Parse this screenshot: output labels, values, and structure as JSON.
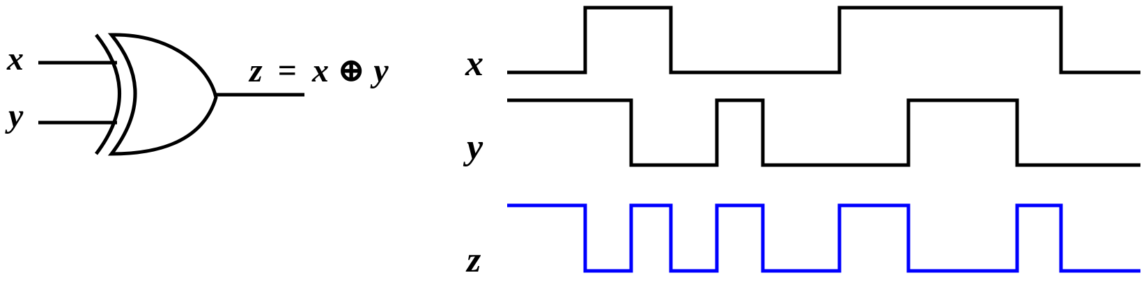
{
  "gate": {
    "type": "XOR",
    "input_labels": [
      "x",
      "y"
    ],
    "output_equation": {
      "lhs": "z",
      "equals": "=",
      "operand_a": "x",
      "operator": "⊕",
      "operand_b": "y"
    }
  },
  "timing": {
    "signals": [
      {
        "name": "x",
        "color": "#000000",
        "levels": [
          0,
          1,
          1,
          0,
          0,
          0,
          0,
          1,
          1,
          1,
          1,
          0,
          0
        ]
      },
      {
        "name": "y",
        "color": "#000000",
        "levels": [
          1,
          1,
          0,
          0,
          1,
          0,
          0,
          0,
          1,
          1,
          0,
          0,
          0
        ]
      },
      {
        "name": "z",
        "color": "#0000ff",
        "levels": [
          1,
          0,
          1,
          0,
          1,
          0,
          0,
          1,
          0,
          0,
          1,
          0,
          0
        ]
      }
    ]
  }
}
